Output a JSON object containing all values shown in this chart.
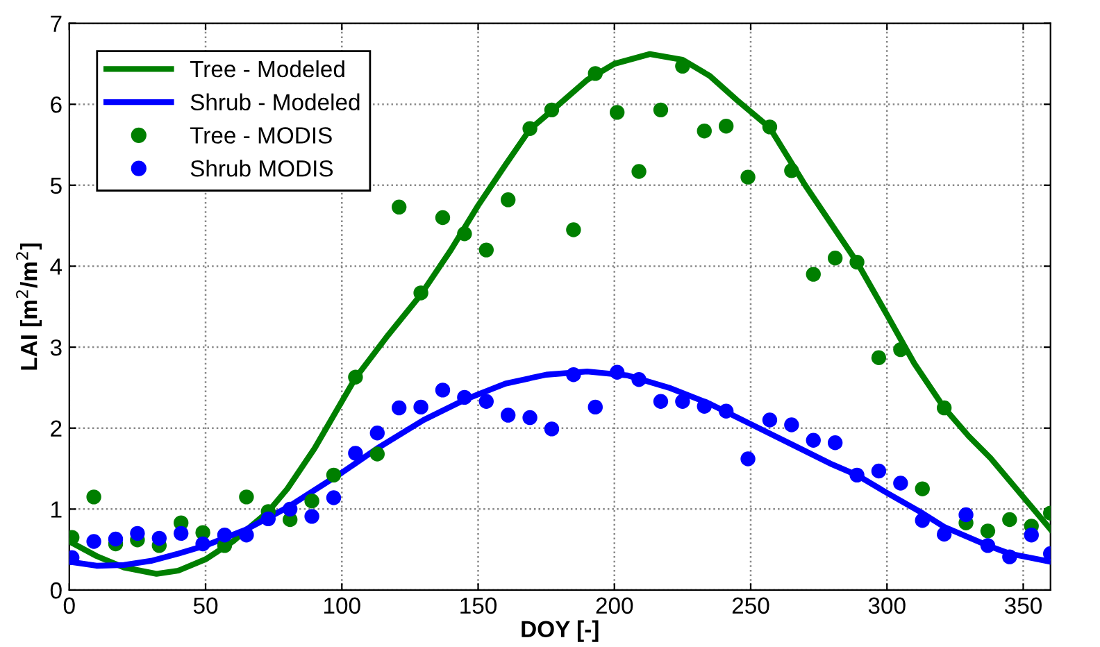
{
  "chart_data": {
    "type": "line",
    "xlabel": "DOY [-]",
    "ylabel": "LAI [m$^{2}$/m$^{2}$]",
    "xlim": [
      0,
      360
    ],
    "ylim": [
      0,
      7
    ],
    "xticks": [
      0,
      50,
      100,
      150,
      200,
      250,
      300,
      350
    ],
    "yticks": [
      0,
      1,
      2,
      3,
      4,
      5,
      6,
      7
    ],
    "grid": true,
    "legend": "top left",
    "series": [
      {
        "name": "Tree - Modeled",
        "color": "#007f00",
        "marker": "none",
        "line_style": "solid",
        "x": [
          0,
          10,
          20,
          32,
          40,
          50,
          60,
          73,
          80,
          90,
          105,
          117,
          129,
          140,
          150,
          160,
          169,
          177,
          190,
          200,
          213,
          225,
          235,
          245,
          257,
          270,
          280,
          289,
          300,
          310,
          321,
          330,
          338,
          350,
          360
        ],
        "values": [
          0.6,
          0.42,
          0.28,
          0.2,
          0.24,
          0.38,
          0.6,
          0.97,
          1.25,
          1.75,
          2.62,
          3.15,
          3.65,
          4.2,
          4.75,
          5.25,
          5.69,
          5.92,
          6.3,
          6.5,
          6.62,
          6.55,
          6.35,
          6.05,
          5.71,
          5.0,
          4.5,
          4.05,
          3.4,
          2.8,
          2.25,
          1.9,
          1.63,
          1.15,
          0.75
        ]
      },
      {
        "name": "Shrub - Modeled",
        "color": "#0000ff",
        "marker": "none",
        "line_style": "solid",
        "x": [
          0,
          10,
          20,
          30,
          40,
          50,
          65,
          80,
          100,
          113,
          130,
          145,
          160,
          175,
          190,
          205,
          220,
          235,
          250,
          265,
          280,
          289,
          300,
          313,
          321,
          337,
          345,
          360
        ],
        "values": [
          0.35,
          0.3,
          0.31,
          0.36,
          0.45,
          0.55,
          0.75,
          1.02,
          1.45,
          1.75,
          2.1,
          2.35,
          2.55,
          2.66,
          2.7,
          2.65,
          2.5,
          2.3,
          2.05,
          1.8,
          1.55,
          1.42,
          1.2,
          0.95,
          0.78,
          0.55,
          0.45,
          0.35
        ]
      },
      {
        "name": "Tree - MODIS",
        "type": "scatter",
        "color": "#007f00",
        "marker": "circle",
        "x": [
          1,
          9,
          17,
          25,
          33,
          41,
          49,
          57,
          65,
          73,
          81,
          89,
          97,
          105,
          113,
          121,
          129,
          137,
          145,
          153,
          161,
          169,
          177,
          185,
          193,
          201,
          209,
          217,
          225,
          233,
          241,
          249,
          257,
          265,
          273,
          281,
          289,
          297,
          305,
          313,
          321,
          329,
          337,
          345,
          353,
          360
        ],
        "values": [
          0.65,
          1.15,
          0.57,
          0.62,
          0.55,
          0.83,
          0.71,
          0.55,
          1.15,
          0.97,
          0.87,
          1.1,
          1.42,
          2.63,
          1.68,
          4.73,
          3.67,
          4.6,
          4.4,
          4.2,
          4.82,
          5.7,
          5.93,
          4.45,
          6.38,
          5.9,
          5.17,
          5.93,
          6.47,
          5.67,
          5.73,
          5.1,
          5.72,
          5.18,
          3.9,
          4.1,
          4.05,
          2.87,
          2.97,
          1.25,
          2.25,
          0.83,
          0.73,
          0.87,
          0.79,
          0.95
        ]
      },
      {
        "name": "Shrub MODIS",
        "type": "scatter",
        "color": "#0000ff",
        "marker": "circle",
        "x": [
          1,
          9,
          17,
          25,
          33,
          41,
          49,
          57,
          65,
          73,
          81,
          89,
          97,
          105,
          113,
          121,
          129,
          137,
          145,
          153,
          161,
          169,
          177,
          185,
          193,
          201,
          209,
          217,
          225,
          233,
          241,
          249,
          257,
          265,
          273,
          281,
          289,
          297,
          305,
          313,
          321,
          329,
          337,
          345,
          353,
          360
        ],
        "values": [
          0.4,
          0.6,
          0.63,
          0.7,
          0.64,
          0.7,
          0.57,
          0.68,
          0.68,
          0.88,
          1.0,
          0.91,
          1.14,
          1.69,
          1.94,
          2.25,
          2.26,
          2.47,
          2.38,
          2.33,
          2.16,
          2.13,
          1.99,
          2.66,
          2.26,
          2.69,
          2.6,
          2.33,
          2.33,
          2.27,
          2.21,
          1.62,
          2.1,
          2.04,
          1.85,
          1.82,
          1.42,
          1.47,
          1.32,
          0.86,
          0.69,
          0.93,
          0.55,
          0.41,
          0.68,
          0.45
        ]
      }
    ]
  }
}
